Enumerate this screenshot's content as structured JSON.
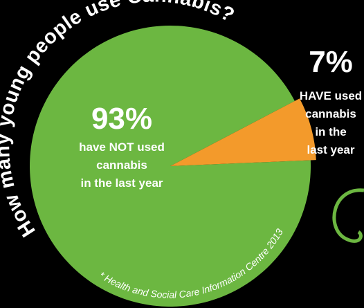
{
  "chart_data": {
    "type": "pie",
    "title": "How many young people use Cannabis?",
    "values": [
      93,
      7
    ],
    "value_labels": [
      "93%",
      "7%"
    ],
    "labels": [
      [
        "have NOT used",
        "cannabis",
        "in the last year"
      ],
      [
        "HAVE used",
        "cannabis",
        "in the",
        "last year"
      ]
    ],
    "colors": [
      "#6cb741",
      "#f39a2b"
    ],
    "source": "* Health and Social Care Information Centre 2013"
  }
}
